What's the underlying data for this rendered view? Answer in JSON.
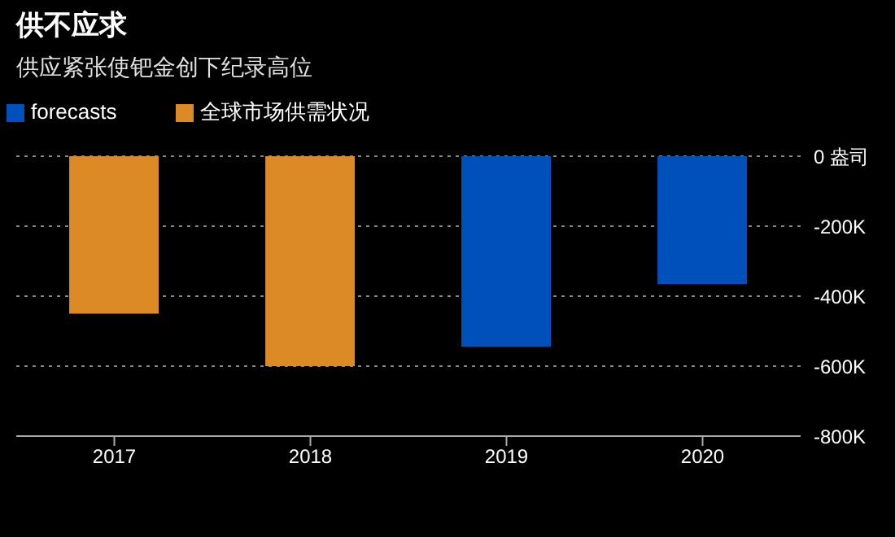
{
  "chart_data": {
    "type": "bar",
    "title": "供不应求",
    "subtitle": "供应紧张使钯金创下纪录高位",
    "categories": [
      "2017",
      "2018",
      "2019",
      "2020"
    ],
    "series": [
      {
        "name": "全球市场供需状况",
        "color": "#dc8a26",
        "values": [
          -450000,
          -600000,
          null,
          null
        ]
      },
      {
        "name": "forecasts",
        "color": "#0050bb",
        "values": [
          null,
          null,
          -545000,
          -365000
        ]
      }
    ],
    "stacked": true,
    "ylim": [
      -800000,
      0
    ],
    "yticks": [
      {
        "value": -800000,
        "label": "-800K"
      },
      {
        "value": -600000,
        "label": "-600K"
      },
      {
        "value": -400000,
        "label": "-400K"
      },
      {
        "value": -200000,
        "label": "-200K"
      },
      {
        "value": 0,
        "label": "0 盎司"
      }
    ],
    "grid": "y",
    "legend": "top left"
  }
}
